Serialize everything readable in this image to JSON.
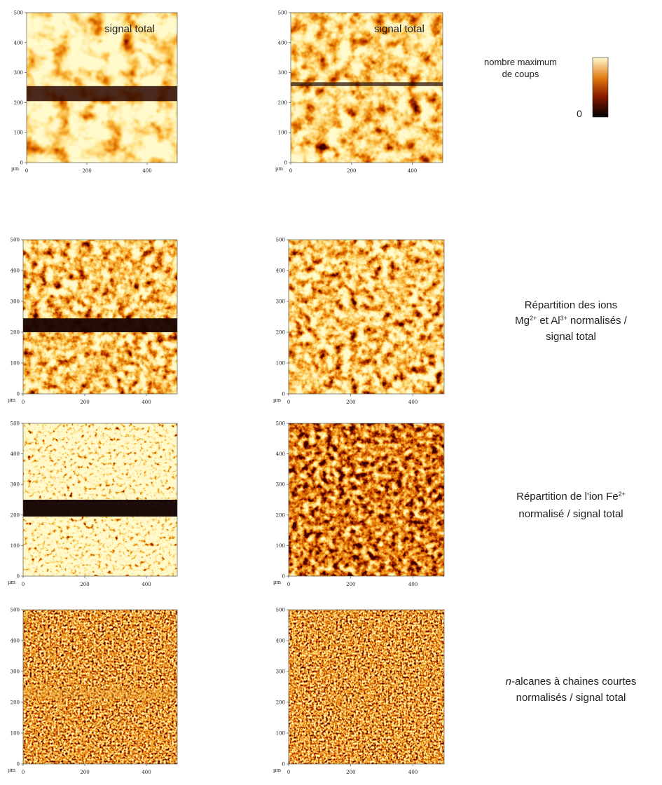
{
  "axes": {
    "xlim": [
      0,
      500
    ],
    "ylim": [
      0,
      500
    ],
    "xticks": [
      0,
      200,
      400
    ],
    "yticks": [
      0,
      100,
      200,
      300,
      400,
      500
    ],
    "unit": "µm"
  },
  "panel_labels": [
    "signal total",
    "signal total"
  ],
  "colorbar": {
    "title_lines": [
      "nombre maximum",
      "de coups"
    ],
    "min_label": 0
  },
  "captions": [
    [
      [
        {
          "text": "Répartition des ions"
        }
      ],
      [
        {
          "text": "Mg"
        },
        {
          "text": "2+",
          "sup": true
        },
        {
          "text": " et Al"
        },
        {
          "text": "3+",
          "sup": true
        },
        {
          "text": " normalisés /"
        }
      ],
      [
        {
          "text": "signal total"
        }
      ]
    ],
    [
      [
        {
          "text": "Répartition de l'ion "
        },
        {
          "text": "Fe"
        },
        {
          "text": "2+",
          "sup": true
        }
      ],
      [
        {
          "text": "normalisé / signal total"
        }
      ]
    ],
    [
      [
        {
          "text": "n",
          "italic": true
        },
        {
          "text": "-alcanes à chaines courtes"
        }
      ],
      [
        {
          "text": "normalisés / signal total"
        }
      ]
    ]
  ]
}
